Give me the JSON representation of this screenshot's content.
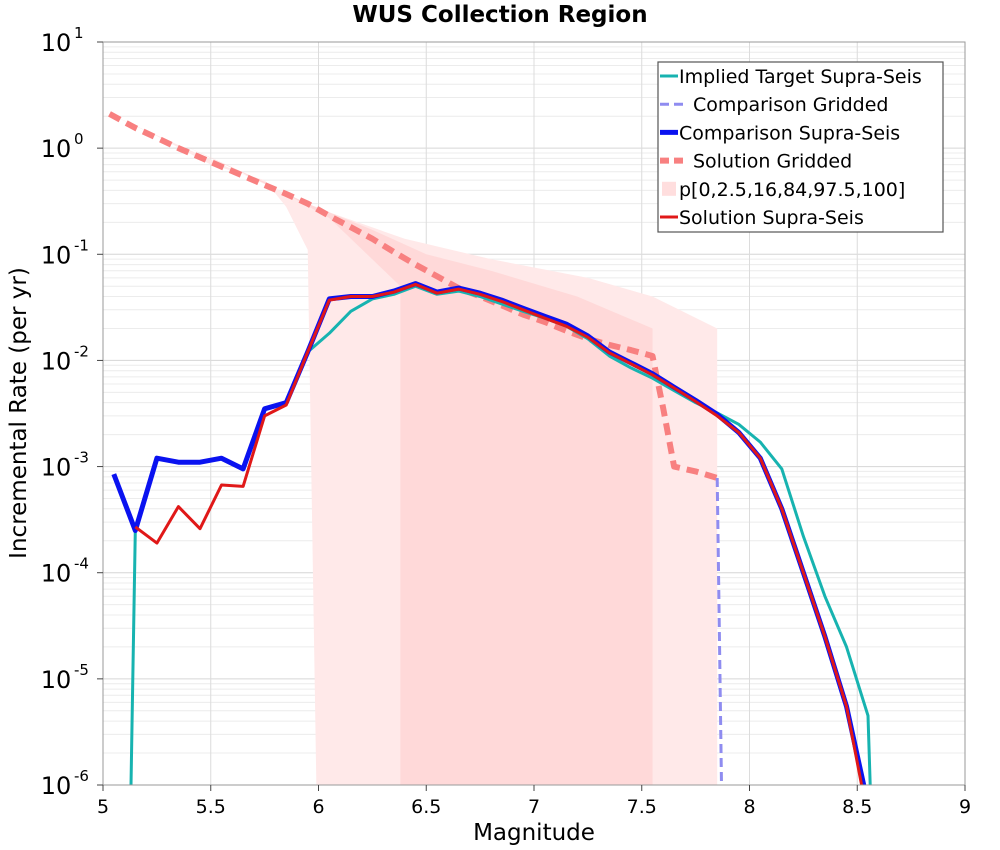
{
  "chart_data": {
    "type": "line",
    "title": "WUS Collection Region",
    "xlabel": "Magnitude",
    "ylabel": "Incremental Rate (per yr)",
    "xlim": [
      5,
      9
    ],
    "ylim": [
      1e-06,
      10
    ],
    "yscale": "log",
    "grid": true,
    "legend_position": "top-right",
    "x_ticks": [
      "5",
      "5.5",
      "6",
      "6.5",
      "7",
      "7.5",
      "8",
      "8.5",
      "9"
    ],
    "y_ticks": [
      {
        "base": "10",
        "exp": "-6"
      },
      {
        "base": "10",
        "exp": "-5"
      },
      {
        "base": "10",
        "exp": "-4"
      },
      {
        "base": "10",
        "exp": "-3"
      },
      {
        "base": "10",
        "exp": "-2"
      },
      {
        "base": "10",
        "exp": "-1"
      },
      {
        "base": "10",
        "exp": "0"
      },
      {
        "base": "10",
        "exp": "1"
      }
    ],
    "series": [
      {
        "name": "Implied Target Supra-Seis",
        "color": "#17b3b0",
        "style": "solid",
        "width": 3,
        "x": [
          5.13,
          5.15,
          5.25,
          5.35,
          5.45,
          5.55,
          5.65,
          5.75,
          5.85,
          5.95,
          6.05,
          6.15,
          6.25,
          6.35,
          6.45,
          6.55,
          6.65,
          6.75,
          6.85,
          6.95,
          7.05,
          7.15,
          7.25,
          7.35,
          7.45,
          7.55,
          7.65,
          7.75,
          7.85,
          7.95,
          8.05,
          8.15,
          8.25,
          8.35,
          8.45,
          8.55,
          8.56
        ],
        "y": [
          1e-06,
          0.00025,
          0.0012,
          0.0011,
          0.0011,
          0.0012,
          0.00095,
          0.0035,
          0.004,
          0.012,
          0.018,
          0.029,
          0.038,
          0.042,
          0.05,
          0.042,
          0.045,
          0.04,
          0.034,
          0.029,
          0.025,
          0.021,
          0.016,
          0.011,
          0.0085,
          0.0068,
          0.0052,
          0.004,
          0.0032,
          0.0025,
          0.0017,
          0.00095,
          0.00022,
          6e-05,
          2e-05,
          4.5e-06,
          1e-06
        ]
      },
      {
        "name": "Comparison Gridded",
        "color": "#8f8cf0",
        "style": "dashed",
        "width": 3,
        "x": [
          7.85,
          7.87
        ],
        "y": [
          0.00078,
          1e-06
        ]
      },
      {
        "name": "Comparison Supra-Seis",
        "color": "#0a12f0",
        "style": "solid",
        "width": 5,
        "x": [
          5.05,
          5.15,
          5.25,
          5.35,
          5.45,
          5.55,
          5.65,
          5.75,
          5.85,
          5.95,
          6.05,
          6.15,
          6.25,
          6.35,
          6.45,
          6.55,
          6.65,
          6.75,
          6.85,
          6.95,
          7.05,
          7.15,
          7.25,
          7.35,
          7.45,
          7.55,
          7.65,
          7.75,
          7.85,
          7.95,
          8.05,
          8.15,
          8.25,
          8.35,
          8.45,
          8.53
        ],
        "y": [
          0.00085,
          0.00025,
          0.0012,
          0.0011,
          0.0011,
          0.0012,
          0.00095,
          0.0035,
          0.004,
          0.012,
          0.038,
          0.04,
          0.04,
          0.045,
          0.053,
          0.044,
          0.048,
          0.043,
          0.037,
          0.031,
          0.026,
          0.022,
          0.017,
          0.012,
          0.0095,
          0.0075,
          0.0056,
          0.0042,
          0.0031,
          0.0021,
          0.0012,
          0.0004,
          0.0001,
          2.5e-05,
          5.5e-06,
          1e-06
        ]
      },
      {
        "name": "Solution Gridded",
        "color": "#f88080",
        "style": "dashed",
        "width": 6,
        "x": [
          5.03,
          5.15,
          5.25,
          5.35,
          5.45,
          5.55,
          5.65,
          5.75,
          5.85,
          5.95,
          6.05,
          6.15,
          6.25,
          6.35,
          6.45,
          6.55,
          6.65,
          6.75,
          6.85,
          6.95,
          7.05,
          7.15,
          7.25,
          7.35,
          7.45,
          7.55,
          7.6,
          7.65,
          7.75,
          7.85
        ],
        "y": [
          2.1,
          1.55,
          1.25,
          1.0,
          0.82,
          0.67,
          0.55,
          0.45,
          0.37,
          0.3,
          0.23,
          0.18,
          0.14,
          0.105,
          0.08,
          0.062,
          0.048,
          0.04,
          0.033,
          0.027,
          0.023,
          0.019,
          0.016,
          0.014,
          0.0125,
          0.011,
          0.0035,
          0.001,
          0.0009,
          0.00078
        ]
      },
      {
        "name": "p[0,2.5,16,84,97.5,100]",
        "type": "band",
        "color": "#ffd6d6",
        "outer": {
          "x": [
            5.03,
            5.25,
            5.5,
            5.75,
            5.85,
            5.95,
            5.99,
            5.99,
            6.4,
            6.6,
            7.0,
            7.55,
            7.85,
            7.85,
            7.55,
            7.25,
            6.8,
            6.4,
            6.0,
            5.5,
            5.03
          ],
          "lo": [
            2.1,
            1.3,
            0.7,
            0.5,
            0.28,
            0.11,
            1e-06,
            1e-06,
            1e-06,
            1e-06,
            1e-06,
            1e-06,
            1e-06,
            0.02,
            0.04,
            0.06,
            0.09,
            0.14,
            0.27,
            0.78,
            2.1
          ]
        },
        "inner": {
          "x": [
            5.38,
            5.75,
            6.05,
            6.38,
            6.38,
            6.8,
            7.2,
            7.55,
            7.55,
            7.2,
            6.8,
            6.5,
            6.25,
            5.95,
            5.38
          ],
          "y": [
            1.05,
            0.48,
            0.22,
            0.05,
            1e-06,
            1e-06,
            1e-06,
            1e-06,
            0.02,
            0.04,
            0.07,
            0.1,
            0.17,
            0.3,
            1.05
          ]
        }
      },
      {
        "name": "Solution Supra-Seis",
        "color": "#e01818",
        "style": "solid",
        "width": 3,
        "x": [
          5.15,
          5.25,
          5.35,
          5.45,
          5.55,
          5.65,
          5.75,
          5.85,
          5.95,
          6.05,
          6.15,
          6.25,
          6.35,
          6.45,
          6.55,
          6.65,
          6.75,
          6.85,
          6.95,
          7.05,
          7.15,
          7.25,
          7.35,
          7.45,
          7.55,
          7.65,
          7.75,
          7.85,
          7.95,
          8.05,
          8.15,
          8.25,
          8.35,
          8.45,
          8.52
        ],
        "y": [
          0.00027,
          0.00019,
          0.00042,
          0.00026,
          0.00067,
          0.00065,
          0.003,
          0.0038,
          0.012,
          0.037,
          0.04,
          0.04,
          0.044,
          0.052,
          0.043,
          0.047,
          0.042,
          0.036,
          0.03,
          0.025,
          0.021,
          0.0165,
          0.0118,
          0.0093,
          0.0073,
          0.0055,
          0.0041,
          0.003,
          0.0021,
          0.0012,
          0.0004,
          0.0001,
          2.5e-05,
          5.5e-06,
          1e-06
        ]
      }
    ],
    "legend": [
      {
        "label": "Implied Target Supra-Seis",
        "color": "#17b3b0",
        "style": "solid",
        "width": 3
      },
      {
        "label": "Comparison Gridded",
        "color": "#8f8cf0",
        "style": "dashed",
        "width": 3
      },
      {
        "label": "Comparison Supra-Seis",
        "color": "#0a12f0",
        "style": "solid",
        "width": 5
      },
      {
        "label": "Solution Gridded",
        "color": "#f88080",
        "style": "dashed",
        "width": 6
      },
      {
        "label": "p[0,2.5,16,84,97.5,100]",
        "color": "#ffd6d6",
        "style": "band",
        "width": 10
      },
      {
        "label": "Solution Supra-Seis",
        "color": "#e01818",
        "style": "solid",
        "width": 3
      }
    ]
  }
}
